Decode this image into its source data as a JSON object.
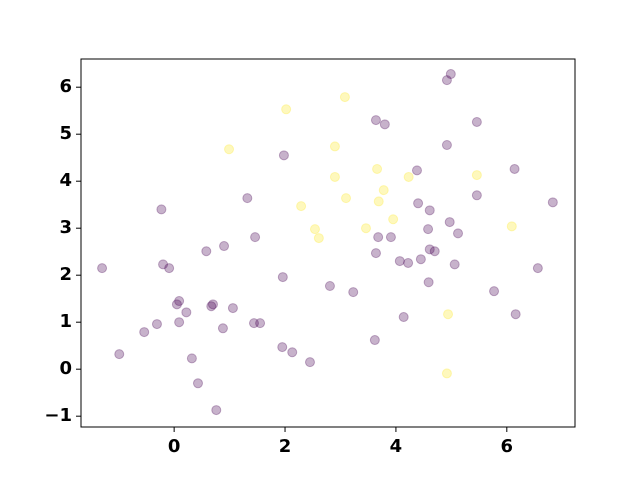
{
  "chart_data": {
    "type": "scatter",
    "xlim": [
      -1.68,
      7.23
    ],
    "ylim": [
      -1.23,
      6.6
    ],
    "xticks": [
      0,
      2,
      4,
      6
    ],
    "yticks": [
      {
        "value": -1,
        "label": "−1"
      },
      0,
      1,
      2,
      3,
      4,
      5,
      6
    ],
    "alpha": 0.3,
    "series": [
      {
        "color": "#440154",
        "x": [
          -1.3,
          -0.99,
          -0.23,
          -0.2,
          -0.09,
          -0.31,
          -0.54,
          0.05,
          0.09,
          0.09,
          0.22,
          0.32,
          0.43,
          0.58,
          0.67,
          0.7,
          0.76,
          0.88,
          0.9,
          1.06,
          1.32,
          1.46,
          1.44,
          1.55,
          1.98,
          1.96,
          1.95,
          2.13,
          2.45,
          2.81,
          3.23,
          3.64,
          3.8,
          3.64,
          3.68,
          3.91,
          3.62,
          4.07,
          4.22,
          4.14,
          4.38,
          4.4,
          4.45,
          4.58,
          4.61,
          4.61,
          4.7,
          4.59,
          4.92,
          4.99,
          4.92,
          4.97,
          5.12,
          5.06,
          5.46,
          5.46,
          5.77,
          6.14,
          6.16,
          6.56,
          6.83
        ],
        "values": [
          2.15,
          0.32,
          3.4,
          2.23,
          2.15,
          0.96,
          0.79,
          1.38,
          1.45,
          1.0,
          1.21,
          0.23,
          -0.3,
          2.51,
          1.34,
          1.38,
          -0.87,
          0.87,
          2.62,
          1.3,
          3.64,
          2.81,
          0.98,
          0.98,
          4.55,
          1.96,
          0.47,
          0.36,
          0.15,
          1.77,
          1.64,
          5.3,
          5.21,
          2.47,
          2.81,
          2.81,
          0.62,
          2.3,
          2.26,
          1.11,
          4.23,
          3.53,
          2.34,
          2.98,
          3.38,
          2.55,
          2.51,
          1.85,
          6.15,
          6.28,
          4.77,
          3.13,
          2.89,
          2.23,
          5.26,
          3.7,
          1.66,
          4.26,
          1.17,
          2.15,
          3.55
        ]
      },
      {
        "color": "#fde725",
        "x": [
          0.99,
          2.02,
          2.29,
          2.54,
          2.61,
          2.9,
          2.9,
          3.08,
          3.1,
          3.46,
          3.66,
          3.69,
          3.78,
          3.95,
          4.23,
          4.94,
          4.92,
          5.46,
          6.09
        ],
        "values": [
          4.68,
          5.53,
          3.47,
          2.98,
          2.79,
          4.74,
          4.09,
          5.79,
          3.64,
          3.0,
          4.26,
          3.57,
          3.81,
          3.19,
          4.09,
          1.17,
          -0.09,
          4.13,
          3.04
        ]
      }
    ]
  }
}
